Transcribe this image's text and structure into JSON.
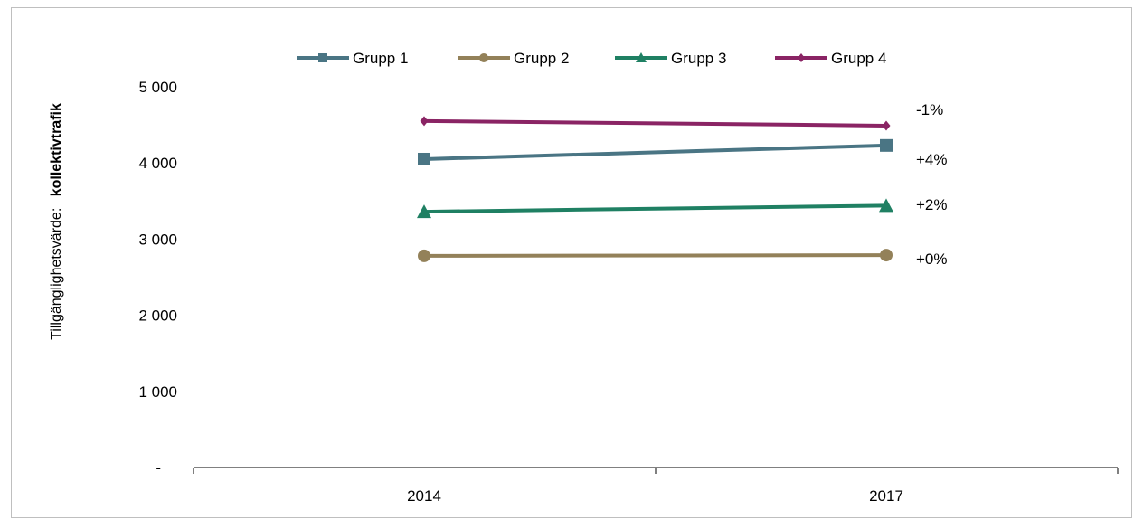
{
  "chart_data": {
    "type": "line",
    "categories": [
      "2014",
      "2017"
    ],
    "ylabel_prefix": "Tillgänglighetsvärde:",
    "ylabel_emphasis": "kollektivtrafik",
    "y_ticks": [
      "-",
      "1 000",
      "2 000",
      "3 000",
      "4 000",
      "5 000"
    ],
    "ylim": [
      0,
      5000
    ],
    "grid": false,
    "legend_position": "top",
    "series": [
      {
        "name": "Grupp 1",
        "values": [
          4050,
          4230
        ],
        "color": "#4a7584",
        "marker": "square",
        "change_label": "+4%"
      },
      {
        "name": "Grupp 2",
        "values": [
          2780,
          2790
        ],
        "color": "#938159",
        "marker": "circle",
        "change_label": "+0%"
      },
      {
        "name": "Grupp 3",
        "values": [
          3360,
          3440
        ],
        "color": "#1f8063",
        "marker": "triangle",
        "change_label": "+2%"
      },
      {
        "name": "Grupp 4",
        "values": [
          4550,
          4490
        ],
        "color": "#8a2464",
        "marker": "diamond",
        "change_label": "-1%"
      }
    ]
  }
}
